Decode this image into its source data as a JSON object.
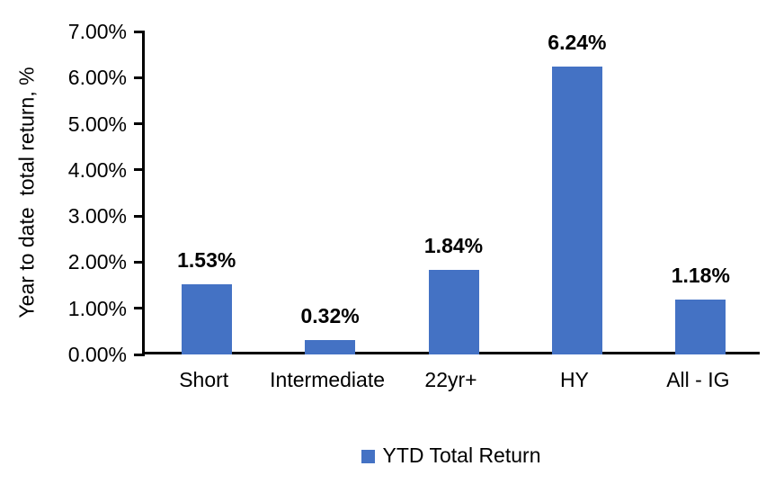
{
  "chart_data": {
    "type": "bar",
    "title": "",
    "xlabel": "",
    "ylabel": "Year to date  total return, %",
    "categories": [
      "Short",
      "Intermediate",
      "22yr+",
      "HY",
      "All - IG"
    ],
    "values": [
      1.53,
      0.32,
      1.84,
      6.24,
      1.18
    ],
    "data_labels": [
      "1.53%",
      "0.32%",
      "1.84%",
      "6.24%",
      "1.18%"
    ],
    "ylim": [
      0,
      7
    ],
    "ytick_step": 1,
    "ytick_labels": [
      "0.00%",
      "1.00%",
      "2.00%",
      "3.00%",
      "4.00%",
      "5.00%",
      "6.00%",
      "7.00%"
    ],
    "grid": false,
    "bar_color": "#4472C4",
    "axis_color": "#000000",
    "text_color": "#000000",
    "legend_position": "bottom",
    "legend": [
      {
        "label": "YTD Total Return",
        "color": "#4472C4"
      }
    ]
  }
}
